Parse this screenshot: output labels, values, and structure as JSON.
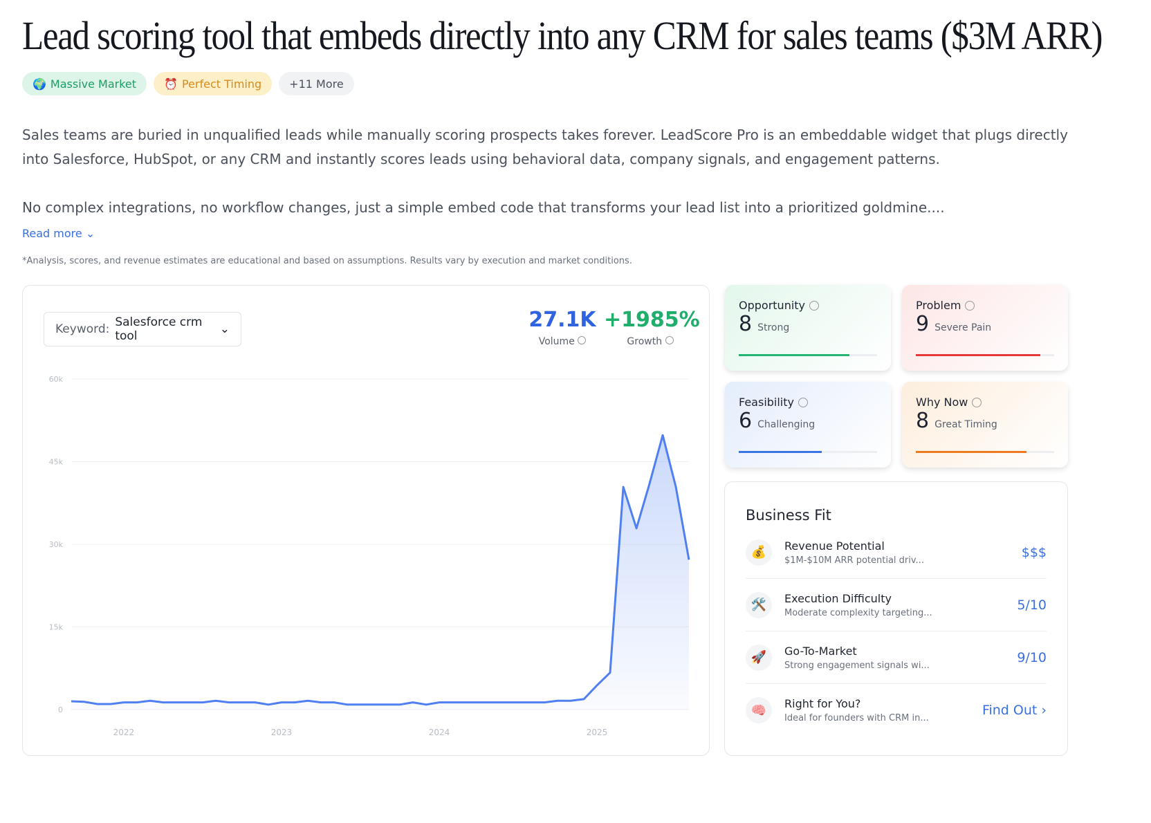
{
  "title": "Lead scoring tool that embeds directly into any CRM for sales teams ($3M ARR)",
  "tags": [
    {
      "icon": "🌍",
      "label": "Massive Market"
    },
    {
      "icon": "⏰",
      "label": "Perfect Timing"
    },
    {
      "label": "+11 More"
    }
  ],
  "description": [
    "Sales teams are buried in unqualified leads while manually scoring prospects takes forever. LeadScore Pro is an embeddable widget that plugs directly into Salesforce, HubSpot, or any CRM and instantly scores leads using behavioral data, company signals, and engagement patterns.",
    "No complex integrations, no workflow changes, just a simple embed code that transforms your lead list into a prioritized goldmine...."
  ],
  "read_more": "Read more",
  "disclaimer": "*Analysis, scores, and revenue estimates are educational and based on assumptions. Results vary by execution and market conditions.",
  "trend": {
    "keyword_label": "Keyword:",
    "keyword": "Salesforce crm tool",
    "volume": "27.1K",
    "volume_label": "Volume",
    "growth": "+1985%",
    "growth_label": "Growth"
  },
  "chart_data": {
    "type": "line",
    "color": "#4f7ff0",
    "grid": true,
    "x": [
      2021.667,
      2021.75,
      2021.833,
      2021.917,
      2022,
      2022.083,
      2022.167,
      2022.25,
      2022.333,
      2022.417,
      2022.5,
      2022.583,
      2022.667,
      2022.75,
      2022.833,
      2022.917,
      2023,
      2023.083,
      2023.167,
      2023.25,
      2023.333,
      2023.417,
      2023.5,
      2023.583,
      2023.667,
      2023.75,
      2023.833,
      2023.917,
      2024,
      2024.083,
      2024.167,
      2024.25,
      2024.333,
      2024.417,
      2024.5,
      2024.583,
      2024.667,
      2024.75,
      2024.833,
      2024.917,
      2025,
      2025.083,
      2025.167,
      2025.25,
      2025.333,
      2025.417,
      2025.5,
      2025.583
    ],
    "values": [
      1500,
      1400,
      1000,
      1000,
      1300,
      1300,
      1600,
      1300,
      1300,
      1300,
      1300,
      1600,
      1300,
      1300,
      1300,
      900,
      1300,
      1300,
      1600,
      1300,
      1300,
      900,
      900,
      900,
      900,
      900,
      1300,
      900,
      1300,
      1300,
      1300,
      1300,
      1300,
      1300,
      1300,
      1300,
      1300,
      1600,
      1600,
      1900,
      4400,
      6700,
      40400,
      32900,
      41000,
      49800,
      40400,
      27200
    ],
    "xlim": [
      2021.667,
      2025.583
    ],
    "xticks": [
      2022,
      2023,
      2024,
      2025
    ],
    "ylim": [
      0,
      60000
    ],
    "yticks": [
      0,
      {
        "value": 15000,
        "label": "15k"
      },
      {
        "value": 30000,
        "label": "30k"
      },
      {
        "value": 45000,
        "label": "45k"
      },
      {
        "value": 60000,
        "label": "60k"
      }
    ]
  },
  "scores": [
    {
      "name": "Opportunity",
      "score": 8,
      "label": "Strong",
      "color": "#22b573"
    },
    {
      "name": "Problem",
      "score": 9,
      "label": "Severe Pain",
      "color": "#e5383b"
    },
    {
      "name": "Feasibility",
      "score": 6,
      "label": "Challenging",
      "color": "#3b74e6"
    },
    {
      "name": "Why Now",
      "score": 8,
      "label": "Great Timing",
      "color": "#f07a1f"
    }
  ],
  "business_fit": {
    "title": "Business Fit",
    "items": [
      {
        "icon": "💰",
        "name": "Revenue Potential",
        "desc": "$1M-$10M ARR potential driv...",
        "value": "$$$"
      },
      {
        "icon": "🛠️",
        "name": "Execution Difficulty",
        "desc": "Moderate complexity targeting...",
        "value": "5/10"
      },
      {
        "icon": "🚀",
        "name": "Go-To-Market",
        "desc": "Strong engagement signals wi...",
        "value": "9/10"
      },
      {
        "icon": "🧠",
        "name": "Right for You?",
        "desc": "Ideal for founders with CRM in...",
        "value": "Find Out"
      }
    ]
  }
}
